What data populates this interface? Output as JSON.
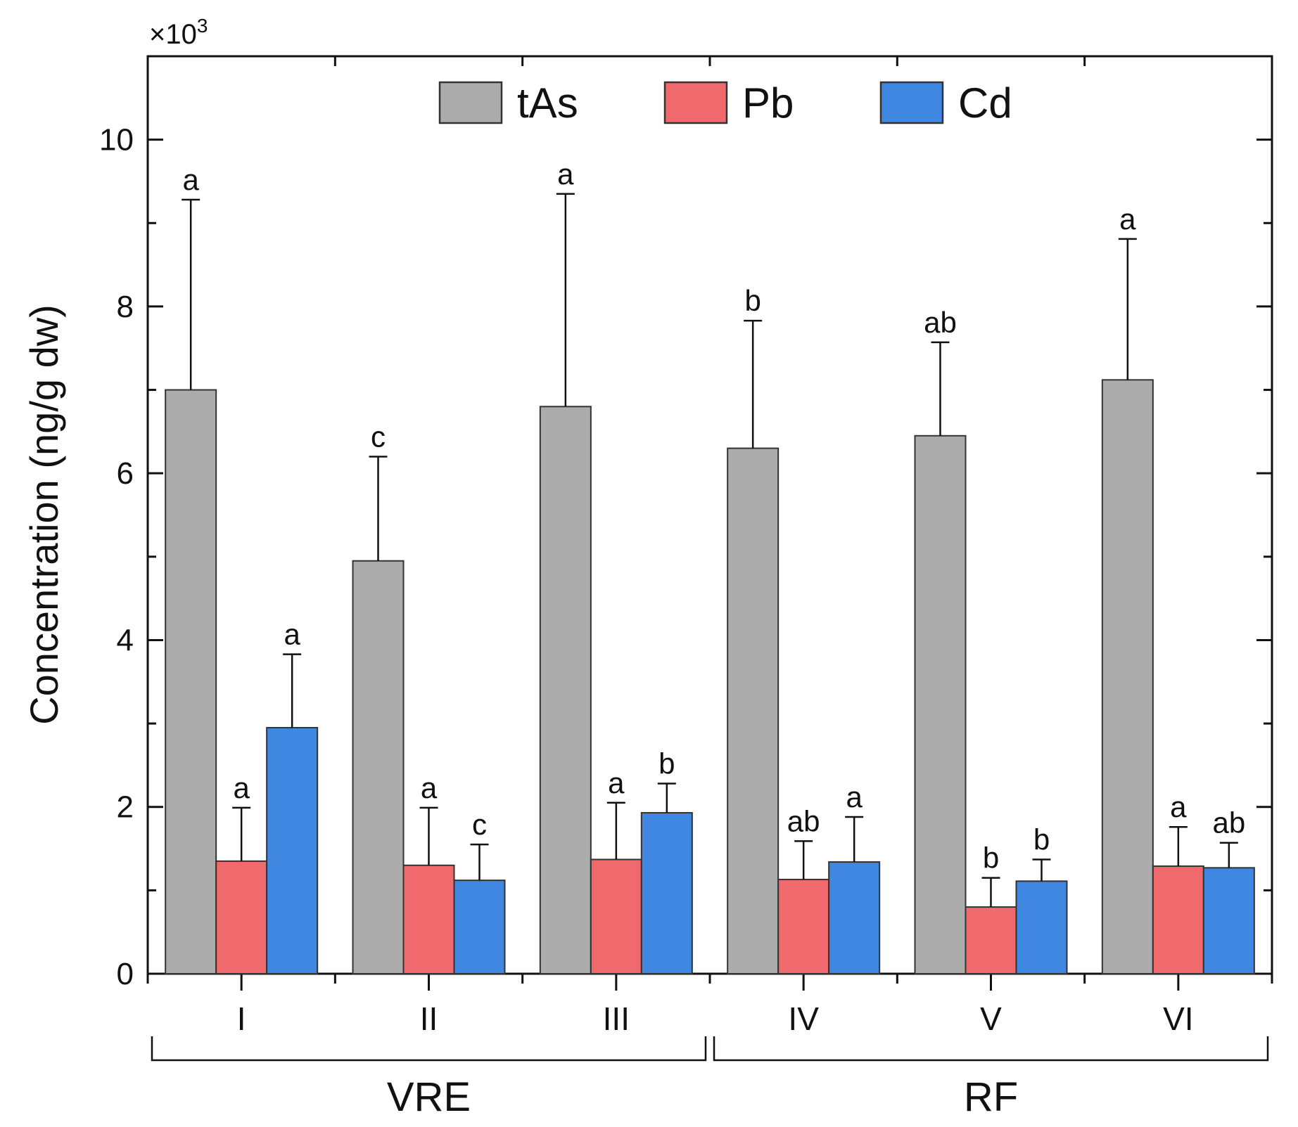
{
  "chart_data": {
    "type": "bar",
    "title": "",
    "xlabel": "",
    "ylabel": "Concentration (ng/g dw)",
    "y_multiplier": {
      "base": "×10",
      "exponent": "3"
    },
    "ylim": [
      0,
      11
    ],
    "yticks": [
      "0",
      "2",
      "4",
      "6",
      "8",
      "10"
    ],
    "categories": [
      "I",
      "II",
      "III",
      "IV",
      "V",
      "VI"
    ],
    "groups": [
      {
        "label": "VRE",
        "categories": [
          "I",
          "II",
          "III"
        ]
      },
      {
        "label": "RF",
        "categories": [
          "IV",
          "V",
          "VI"
        ]
      }
    ],
    "legend_position": "top",
    "series": [
      {
        "name": "tAs",
        "color": "#acacac",
        "values": [
          7.0,
          4.95,
          6.8,
          6.3,
          6.45,
          7.12
        ],
        "errors": [
          2.28,
          1.25,
          2.55,
          1.53,
          1.12,
          1.69
        ],
        "letters": [
          "a",
          "c",
          "a",
          "b",
          "ab",
          "a"
        ]
      },
      {
        "name": "Pb",
        "color": "#f0696c",
        "values": [
          1.35,
          1.3,
          1.37,
          1.13,
          0.8,
          1.29
        ],
        "errors": [
          0.64,
          0.69,
          0.68,
          0.46,
          0.35,
          0.47
        ],
        "letters": [
          "a",
          "a",
          "a",
          "ab",
          "b",
          "a"
        ]
      },
      {
        "name": "Cd",
        "color": "#3f87e0",
        "values": [
          2.95,
          1.12,
          1.93,
          1.34,
          1.11,
          1.27
        ],
        "errors": [
          0.88,
          0.43,
          0.35,
          0.54,
          0.26,
          0.3
        ],
        "letters": [
          "a",
          "c",
          "b",
          "a",
          "b",
          "ab"
        ]
      }
    ]
  }
}
